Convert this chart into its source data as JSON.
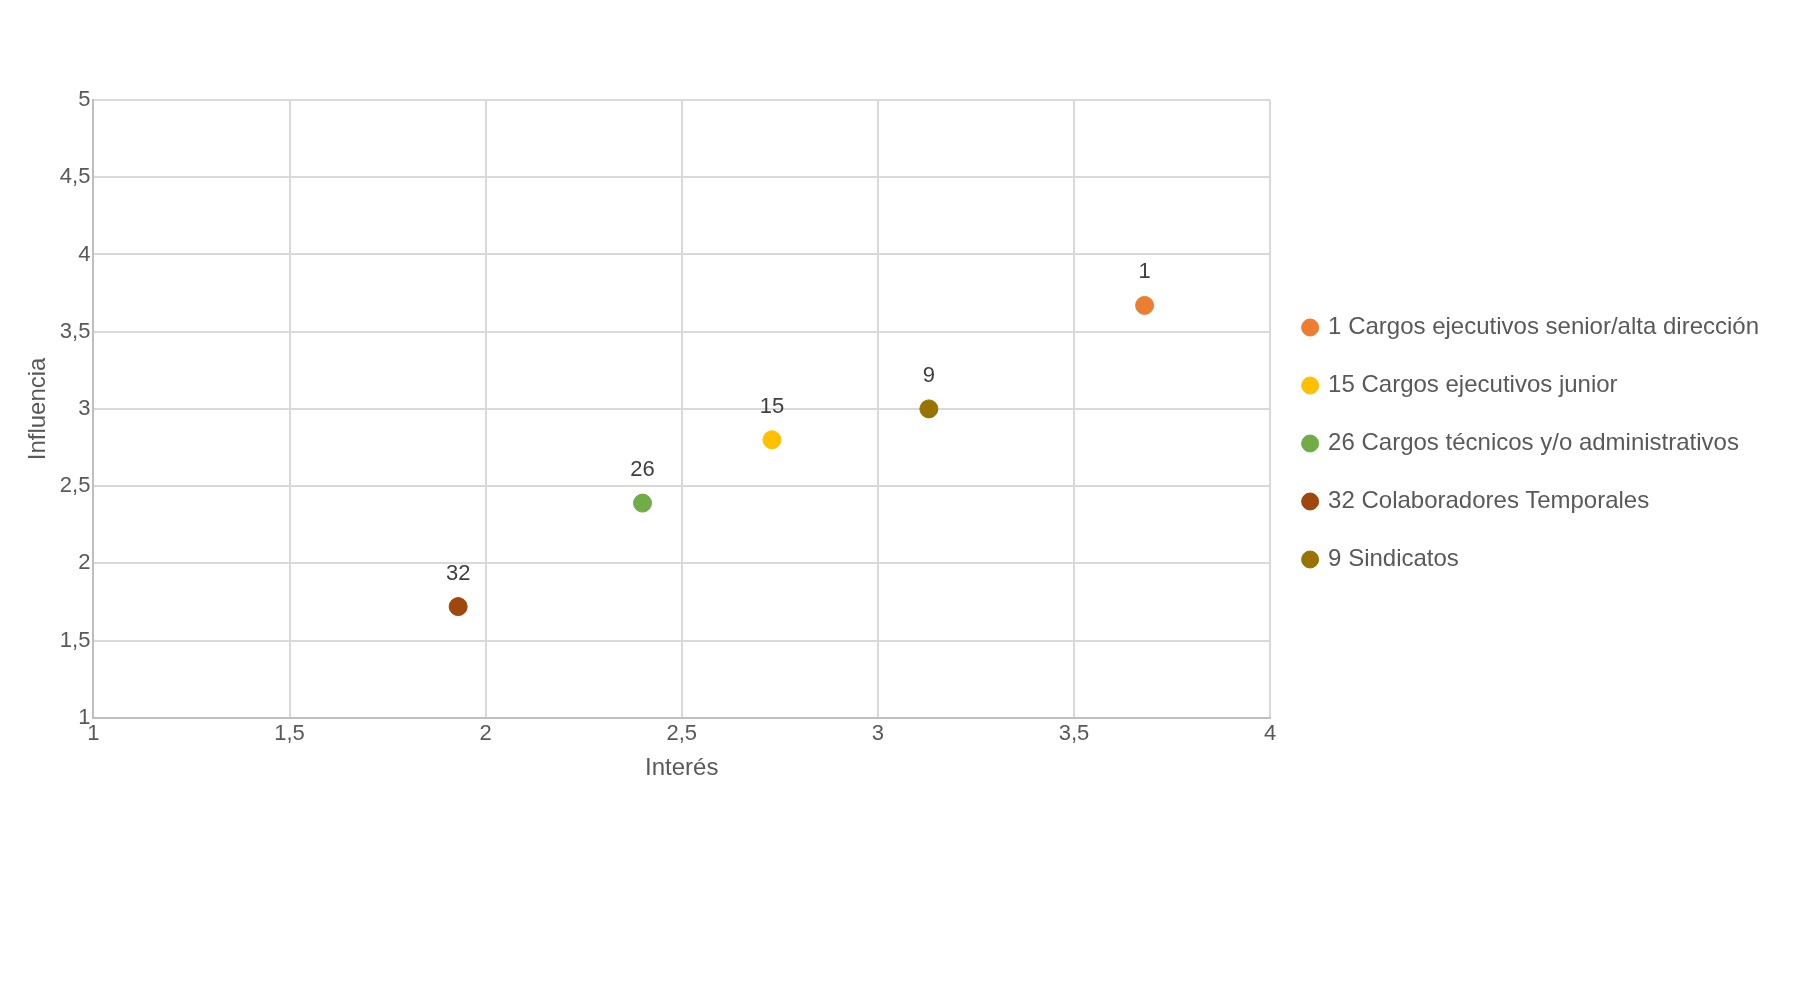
{
  "chart_data": {
    "type": "scatter",
    "xlabel": "Interés",
    "ylabel": "Influencia",
    "xlim": [
      1,
      4
    ],
    "xticks": [
      1,
      {
        "value": 1.5,
        "label": "1,5"
      },
      2,
      {
        "value": 2.5,
        "label": "2,5"
      },
      3,
      {
        "value": 3.5,
        "label": "3,5"
      },
      4
    ],
    "ylim": [
      1,
      5
    ],
    "yticks": [
      1,
      {
        "value": 1.5,
        "label": "1,5"
      },
      2,
      {
        "value": 2.5,
        "label": "2,5"
      },
      3,
      {
        "value": 3.5,
        "label": "3,5"
      },
      4,
      {
        "value": 4.5,
        "label": "4,5"
      },
      5
    ],
    "grid": true,
    "legend": "right",
    "marker": "circle",
    "series": [
      {
        "name": "1 Cargos ejecutivos senior/alta dirección",
        "color": "#ed7d31",
        "x": [
          3.68
        ],
        "values": [
          3.67
        ]
      },
      {
        "name": "15 Cargos ejecutivos junior",
        "color": "#ffc000",
        "x": [
          2.73
        ],
        "values": [
          2.8
        ]
      },
      {
        "name": "26 Cargos técnicos y/o administrativos",
        "color": "#70ad47",
        "x": [
          2.4
        ],
        "values": [
          2.39
        ]
      },
      {
        "name": "32 Colaboradores Temporales",
        "color": "#9e480e",
        "x": [
          1.93
        ],
        "values": [
          1.72
        ]
      },
      {
        "name": "9 Sindicatos",
        "color": "#997300",
        "x": [
          3.13
        ],
        "values": [
          3.0
        ]
      }
    ],
    "annotations": [
      {
        "text": "1",
        "x": 3.68,
        "y": 3.67
      },
      {
        "text": "15",
        "x": 2.73,
        "y": 2.8
      },
      {
        "text": "26",
        "x": 2.4,
        "y": 2.39
      },
      {
        "text": "32",
        "x": 1.93,
        "y": 1.72
      },
      {
        "text": "9",
        "x": 3.13,
        "y": 3.0
      }
    ]
  }
}
